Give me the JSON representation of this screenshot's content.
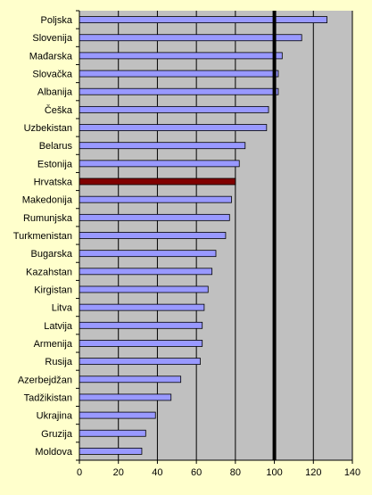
{
  "chart_data": {
    "type": "bar",
    "orientation": "horizontal",
    "title": "",
    "xlabel": "",
    "ylabel": "",
    "xlim": [
      0,
      140
    ],
    "xticks": [
      0,
      20,
      40,
      60,
      80,
      100,
      120,
      140
    ],
    "xtick_labels": [
      "0",
      "20",
      "40",
      "60",
      "80",
      "100",
      "120",
      "140"
    ],
    "grid": "vertical",
    "reference_line": 100,
    "categories": [
      "Poljska",
      "Slovenija",
      "Mađarska",
      "Slovačka",
      "Albanija",
      "Češka",
      "Uzbekistan",
      "Belarus",
      "Estonija",
      "Hrvatska",
      "Makedonija",
      "Rumunjska",
      "Turkmenistan",
      "Bugarska",
      "Kazahstan",
      "Kirgistan",
      "Litva",
      "Latvija",
      "Armenija",
      "Rusija",
      "Azerbejdžan",
      "Tadžikistan",
      "Ukrajina",
      "Gruzija",
      "Moldova"
    ],
    "values": [
      127,
      114,
      104,
      102,
      102,
      97,
      96,
      85,
      82,
      80,
      78,
      77,
      75,
      70,
      68,
      66,
      64,
      63,
      63,
      62,
      52,
      47,
      39,
      34,
      32
    ],
    "highlight_category": "Hrvatska",
    "colors": {
      "page_background": "#FFFFCC",
      "plot_background": "#C0C0C0",
      "bar_fill": "#9999FF",
      "bar_highlight": "#800000",
      "bar_stroke": "#000000",
      "gridline": "#000000",
      "reference_line": "#000000"
    }
  }
}
